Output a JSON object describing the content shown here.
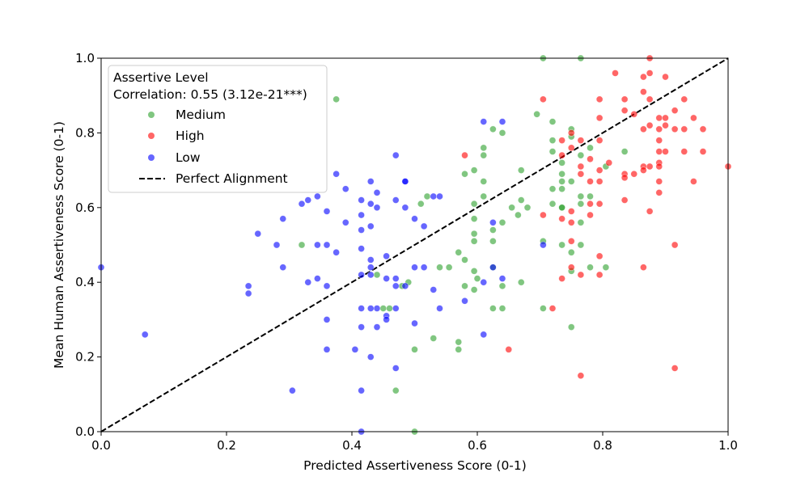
{
  "chart_data": {
    "type": "scatter",
    "title": "",
    "xlabel": "Predicted Assertiveness Score (0-1)",
    "ylabel": "Mean Human Assertiveness Score (0-1)",
    "xlim": [
      0,
      1
    ],
    "ylim": [
      0,
      1
    ],
    "xticks": [
      "0.0",
      "0.2",
      "0.4",
      "0.6",
      "0.8",
      "1.0"
    ],
    "yticks": [
      "0.0",
      "0.2",
      "0.4",
      "0.6",
      "0.8",
      "1.0"
    ],
    "grid": false,
    "legend": {
      "title": "Assertive Level",
      "subtitle": "Correlation: 0.55 (3.12e-21***)",
      "placement": "top-left",
      "entries": [
        "Medium",
        "High",
        "Low",
        "Perfect Alignment"
      ]
    },
    "reference_line": {
      "name": "Perfect Alignment",
      "x": [
        0,
        1
      ],
      "y": [
        0,
        1
      ],
      "style": "dashed",
      "color": "#000000"
    },
    "series": [
      {
        "name": "Medium",
        "color": "#2ca02c",
        "points": [
          [
            0.32,
            0.5
          ],
          [
            0.375,
            0.89
          ],
          [
            0.44,
            0.42
          ],
          [
            0.46,
            0.33
          ],
          [
            0.48,
            0.39
          ],
          [
            0.47,
            0.11
          ],
          [
            0.49,
            0.4
          ],
          [
            0.5,
            0.22
          ],
          [
            0.5,
            0.0
          ],
          [
            0.51,
            0.61
          ],
          [
            0.52,
            0.63
          ],
          [
            0.53,
            0.25
          ],
          [
            0.54,
            0.44
          ],
          [
            0.555,
            0.44
          ],
          [
            0.57,
            0.48
          ],
          [
            0.57,
            0.24
          ],
          [
            0.57,
            0.22
          ],
          [
            0.58,
            0.69
          ],
          [
            0.58,
            0.39
          ],
          [
            0.58,
            0.46
          ],
          [
            0.595,
            0.7
          ],
          [
            0.595,
            0.61
          ],
          [
            0.595,
            0.57
          ],
          [
            0.595,
            0.53
          ],
          [
            0.595,
            0.51
          ],
          [
            0.595,
            0.43
          ],
          [
            0.595,
            0.38
          ],
          [
            0.61,
            0.76
          ],
          [
            0.61,
            0.74
          ],
          [
            0.61,
            0.67
          ],
          [
            0.61,
            0.63
          ],
          [
            0.625,
            0.81
          ],
          [
            0.625,
            0.54
          ],
          [
            0.625,
            0.51
          ],
          [
            0.625,
            0.44
          ],
          [
            0.625,
            0.33
          ],
          [
            0.64,
            0.8
          ],
          [
            0.64,
            0.56
          ],
          [
            0.64,
            0.39
          ],
          [
            0.64,
            0.33
          ],
          [
            0.655,
            0.6
          ],
          [
            0.665,
            0.58
          ],
          [
            0.67,
            0.7
          ],
          [
            0.67,
            0.62
          ],
          [
            0.67,
            0.4
          ],
          [
            0.68,
            0.6
          ],
          [
            0.695,
            0.85
          ],
          [
            0.705,
            1.0
          ],
          [
            0.705,
            0.51
          ],
          [
            0.705,
            0.33
          ],
          [
            0.72,
            0.83
          ],
          [
            0.72,
            0.78
          ],
          [
            0.72,
            0.75
          ],
          [
            0.72,
            0.65
          ],
          [
            0.72,
            0.61
          ],
          [
            0.735,
            0.72
          ],
          [
            0.735,
            0.69
          ],
          [
            0.735,
            0.67
          ],
          [
            0.735,
            0.65
          ],
          [
            0.735,
            0.6
          ],
          [
            0.735,
            0.5
          ],
          [
            0.75,
            0.81
          ],
          [
            0.75,
            0.79
          ],
          [
            0.75,
            0.67
          ],
          [
            0.75,
            0.48
          ],
          [
            0.75,
            0.43
          ],
          [
            0.75,
            0.28
          ],
          [
            0.765,
            1.0
          ],
          [
            0.765,
            0.74
          ],
          [
            0.765,
            0.63
          ],
          [
            0.765,
            0.61
          ],
          [
            0.765,
            0.56
          ],
          [
            0.765,
            0.5
          ],
          [
            0.78,
            0.76
          ],
          [
            0.78,
            0.63
          ],
          [
            0.78,
            0.44
          ],
          [
            0.805,
            0.71
          ],
          [
            0.805,
            0.44
          ],
          [
            0.835,
            0.75
          ],
          [
            0.6,
            0.41
          ],
          [
            0.45,
            0.33
          ],
          [
            0.735,
            0.6
          ]
        ]
      },
      {
        "name": "High",
        "color": "#ff0000",
        "points": [
          [
            0.58,
            0.74
          ],
          [
            0.65,
            0.22
          ],
          [
            0.705,
            0.89
          ],
          [
            0.705,
            0.58
          ],
          [
            0.72,
            0.33
          ],
          [
            0.735,
            0.78
          ],
          [
            0.735,
            0.74
          ],
          [
            0.735,
            0.57
          ],
          [
            0.735,
            0.41
          ],
          [
            0.75,
            0.8
          ],
          [
            0.75,
            0.76
          ],
          [
            0.75,
            0.59
          ],
          [
            0.75,
            0.56
          ],
          [
            0.75,
            0.51
          ],
          [
            0.75,
            0.44
          ],
          [
            0.765,
            0.78
          ],
          [
            0.765,
            0.71
          ],
          [
            0.765,
            0.69
          ],
          [
            0.765,
            0.15
          ],
          [
            0.765,
            0.42
          ],
          [
            0.78,
            0.73
          ],
          [
            0.78,
            0.67
          ],
          [
            0.78,
            0.61
          ],
          [
            0.78,
            0.58
          ],
          [
            0.795,
            0.89
          ],
          [
            0.795,
            0.84
          ],
          [
            0.795,
            0.78
          ],
          [
            0.795,
            0.7
          ],
          [
            0.795,
            0.67
          ],
          [
            0.795,
            0.61
          ],
          [
            0.795,
            0.47
          ],
          [
            0.795,
            0.42
          ],
          [
            0.81,
            0.72
          ],
          [
            0.82,
            0.96
          ],
          [
            0.835,
            0.89
          ],
          [
            0.835,
            0.86
          ],
          [
            0.835,
            0.69
          ],
          [
            0.835,
            0.68
          ],
          [
            0.835,
            0.62
          ],
          [
            0.85,
            0.85
          ],
          [
            0.85,
            0.69
          ],
          [
            0.865,
            0.95
          ],
          [
            0.865,
            0.91
          ],
          [
            0.865,
            0.81
          ],
          [
            0.865,
            0.71
          ],
          [
            0.865,
            0.7
          ],
          [
            0.865,
            0.44
          ],
          [
            0.875,
            1.0
          ],
          [
            0.875,
            0.96
          ],
          [
            0.875,
            0.89
          ],
          [
            0.875,
            0.82
          ],
          [
            0.875,
            0.71
          ],
          [
            0.875,
            0.59
          ],
          [
            0.89,
            0.84
          ],
          [
            0.89,
            0.81
          ],
          [
            0.89,
            0.78
          ],
          [
            0.89,
            0.75
          ],
          [
            0.89,
            0.72
          ],
          [
            0.89,
            0.71
          ],
          [
            0.89,
            0.67
          ],
          [
            0.89,
            0.64
          ],
          [
            0.9,
            0.95
          ],
          [
            0.9,
            0.84
          ],
          [
            0.9,
            0.82
          ],
          [
            0.9,
            0.75
          ],
          [
            0.915,
            0.86
          ],
          [
            0.915,
            0.81
          ],
          [
            0.915,
            0.5
          ],
          [
            0.915,
            0.17
          ],
          [
            0.93,
            0.89
          ],
          [
            0.93,
            0.81
          ],
          [
            0.93,
            0.75
          ],
          [
            0.945,
            0.84
          ],
          [
            0.945,
            0.67
          ],
          [
            0.96,
            0.81
          ],
          [
            0.96,
            0.75
          ],
          [
            1.0,
            0.71
          ]
        ]
      },
      {
        "name": "Low",
        "color": "#0000ff",
        "points": [
          [
            0.0,
            0.44
          ],
          [
            0.07,
            0.26
          ],
          [
            0.235,
            0.39
          ],
          [
            0.235,
            0.37
          ],
          [
            0.25,
            0.53
          ],
          [
            0.28,
            0.5
          ],
          [
            0.29,
            0.57
          ],
          [
            0.29,
            0.44
          ],
          [
            0.305,
            0.11
          ],
          [
            0.32,
            0.61
          ],
          [
            0.33,
            0.62
          ],
          [
            0.33,
            0.4
          ],
          [
            0.345,
            0.63
          ],
          [
            0.345,
            0.41
          ],
          [
            0.345,
            0.5
          ],
          [
            0.36,
            0.59
          ],
          [
            0.36,
            0.5
          ],
          [
            0.36,
            0.39
          ],
          [
            0.36,
            0.3
          ],
          [
            0.36,
            0.22
          ],
          [
            0.375,
            0.69
          ],
          [
            0.375,
            0.48
          ],
          [
            0.39,
            0.65
          ],
          [
            0.39,
            0.56
          ],
          [
            0.405,
            0.22
          ],
          [
            0.415,
            0.62
          ],
          [
            0.415,
            0.58
          ],
          [
            0.415,
            0.54
          ],
          [
            0.415,
            0.49
          ],
          [
            0.415,
            0.42
          ],
          [
            0.415,
            0.33
          ],
          [
            0.415,
            0.28
          ],
          [
            0.415,
            0.11
          ],
          [
            0.415,
            0.0
          ],
          [
            0.43,
            0.67
          ],
          [
            0.43,
            0.61
          ],
          [
            0.43,
            0.55
          ],
          [
            0.43,
            0.46
          ],
          [
            0.43,
            0.44
          ],
          [
            0.43,
            0.42
          ],
          [
            0.43,
            0.2
          ],
          [
            0.44,
            0.64
          ],
          [
            0.44,
            0.6
          ],
          [
            0.44,
            0.33
          ],
          [
            0.44,
            0.28
          ],
          [
            0.455,
            0.47
          ],
          [
            0.455,
            0.41
          ],
          [
            0.455,
            0.31
          ],
          [
            0.455,
            0.3
          ],
          [
            0.47,
            0.74
          ],
          [
            0.47,
            0.62
          ],
          [
            0.47,
            0.41
          ],
          [
            0.47,
            0.39
          ],
          [
            0.47,
            0.33
          ],
          [
            0.47,
            0.17
          ],
          [
            0.485,
            0.67
          ],
          [
            0.485,
            0.6
          ],
          [
            0.485,
            0.39
          ],
          [
            0.5,
            0.57
          ],
          [
            0.5,
            0.44
          ],
          [
            0.5,
            0.29
          ],
          [
            0.515,
            0.55
          ],
          [
            0.515,
            0.44
          ],
          [
            0.53,
            0.63
          ],
          [
            0.53,
            0.38
          ],
          [
            0.54,
            0.63
          ],
          [
            0.54,
            0.33
          ],
          [
            0.58,
            0.35
          ],
          [
            0.61,
            0.83
          ],
          [
            0.61,
            0.26
          ],
          [
            0.61,
            0.4
          ],
          [
            0.625,
            0.56
          ],
          [
            0.625,
            0.44
          ],
          [
            0.64,
            0.83
          ],
          [
            0.64,
            0.41
          ],
          [
            0.705,
            0.5
          ],
          [
            0.43,
            0.33
          ],
          [
            0.485,
            0.67
          ]
        ]
      }
    ]
  }
}
